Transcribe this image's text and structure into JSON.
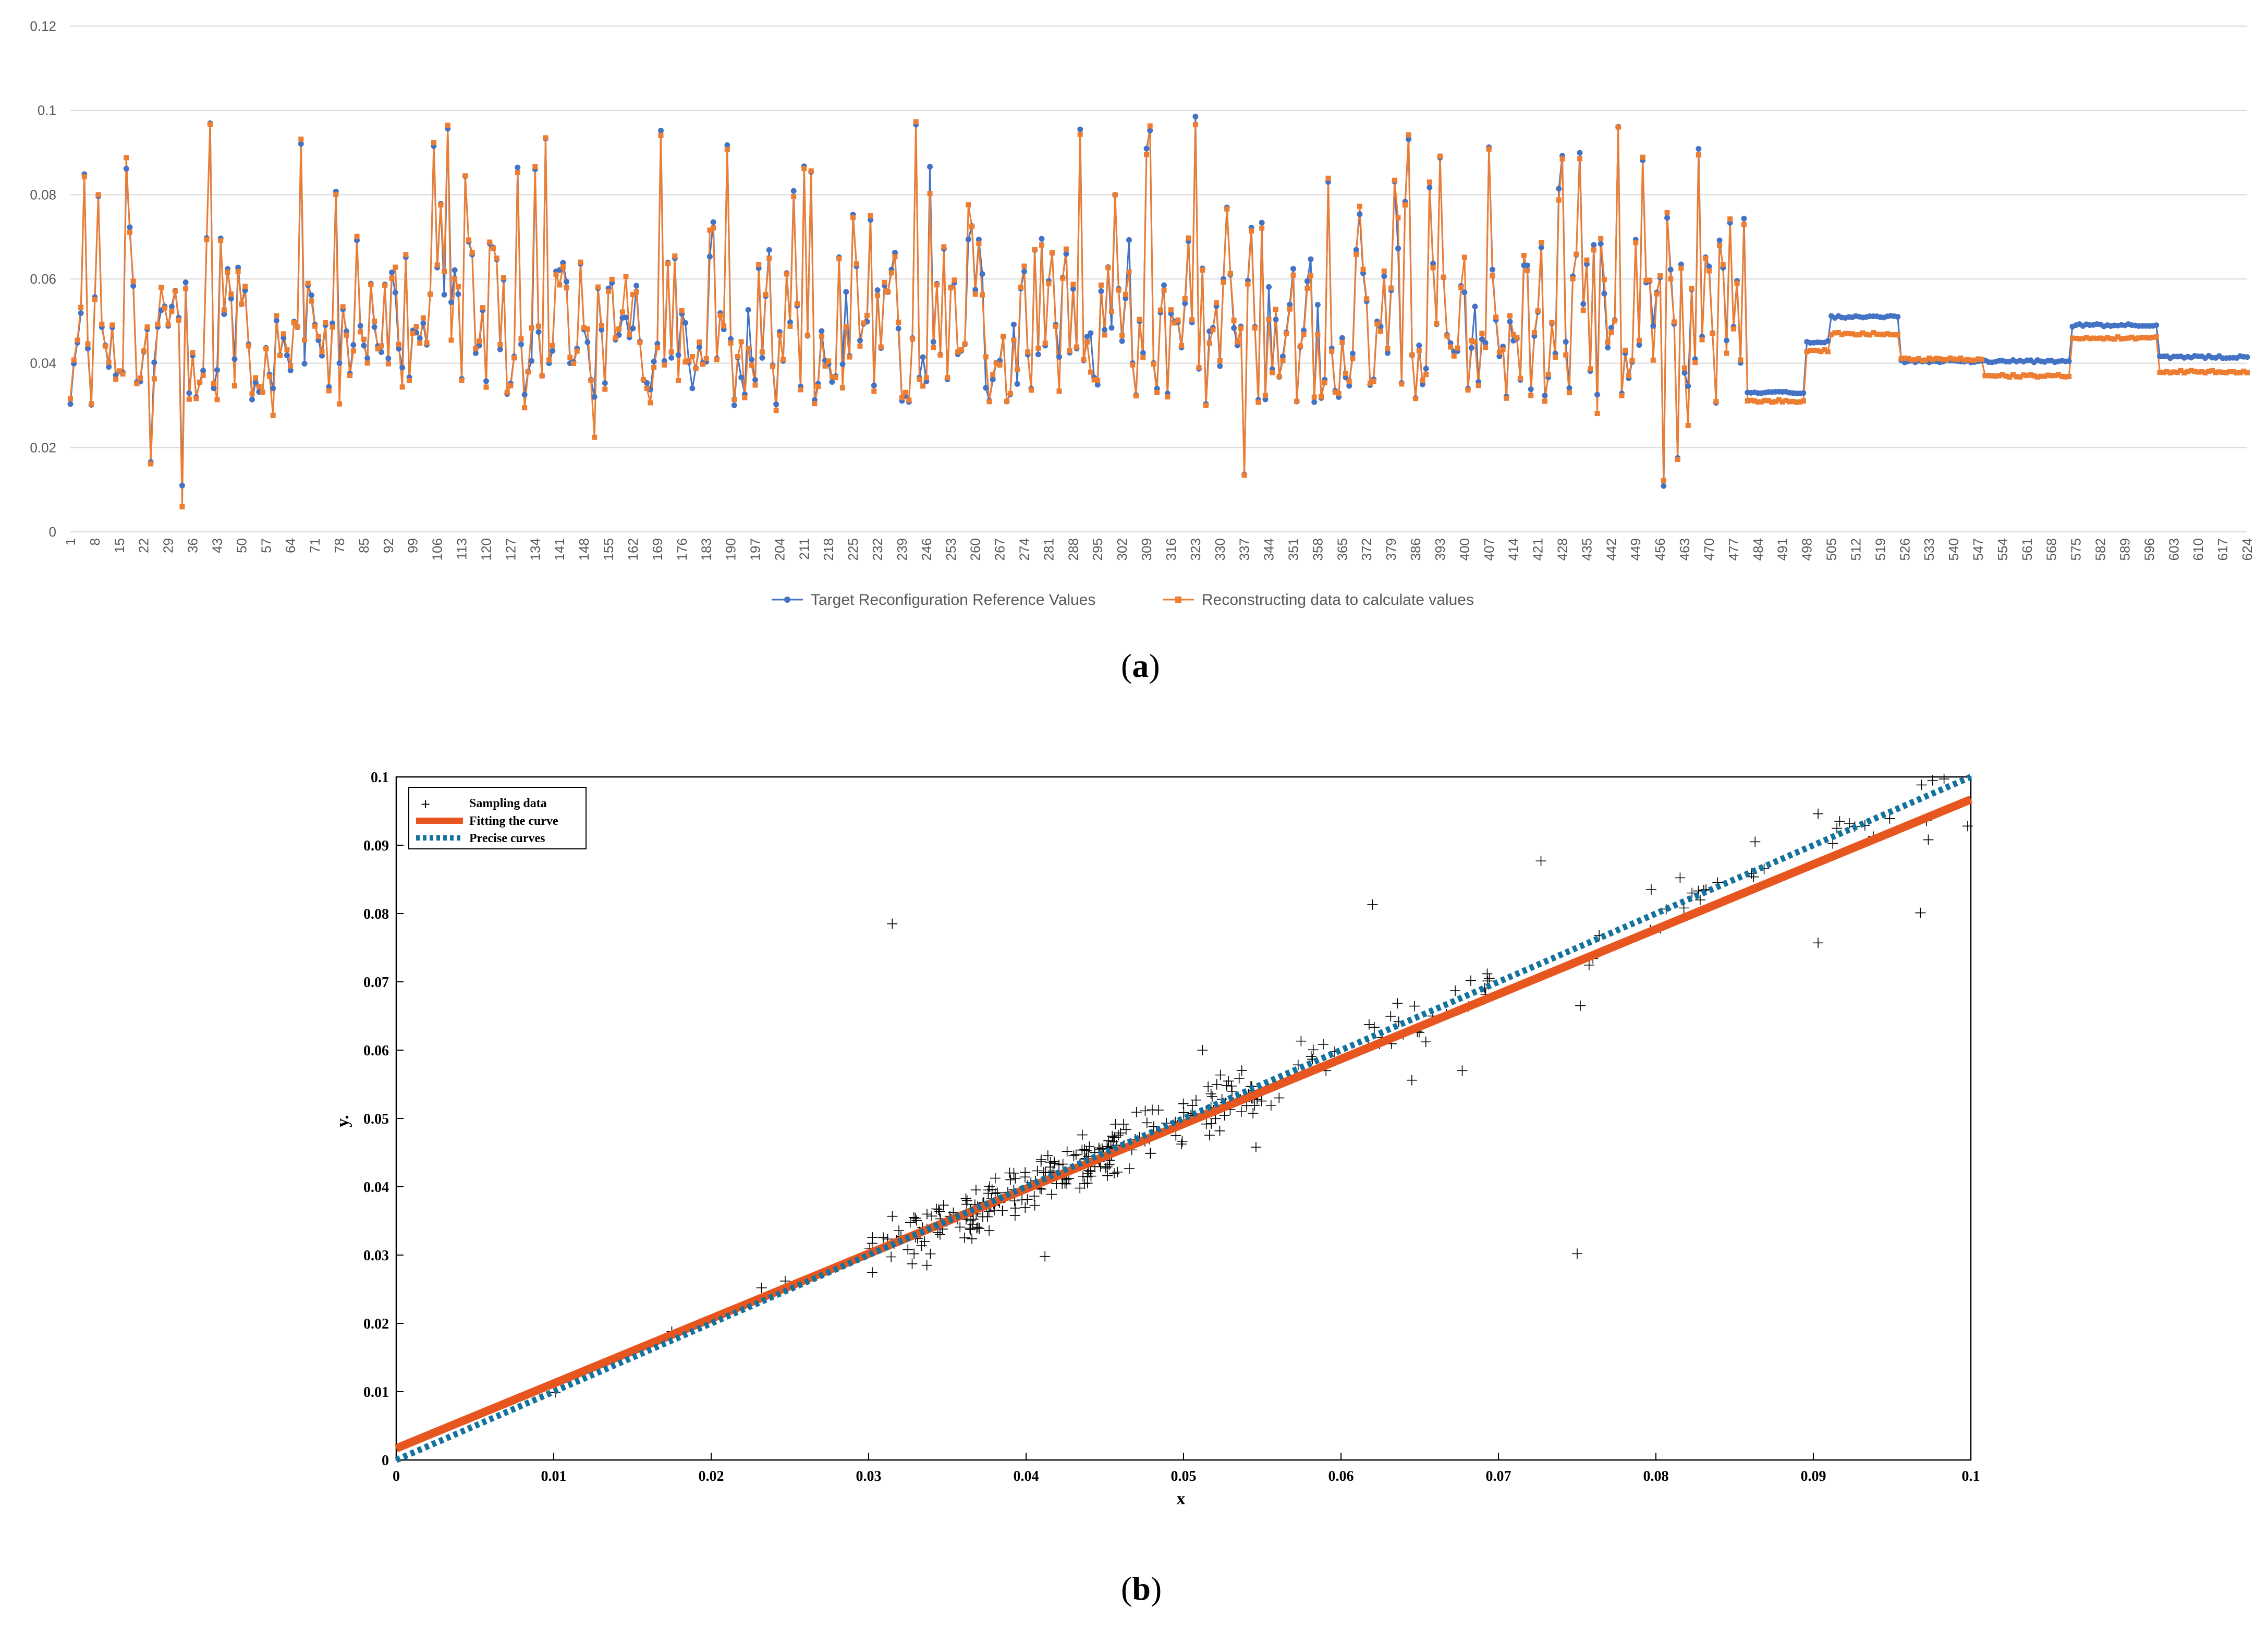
{
  "chart_data": [
    {
      "type": "line",
      "panel": "a",
      "caption_open": "(",
      "caption_letter": "a",
      "caption_close": ")",
      "title": "",
      "xlabel": "",
      "ylabel": "",
      "ylim": [
        0,
        0.12
      ],
      "y_ticks": [
        "0",
        "0.02",
        "0.04",
        "0.06",
        "0.08",
        "0.1",
        "0.12"
      ],
      "x_count": 624,
      "x_ticks_start": 1,
      "x_ticks_step": 7,
      "x_ticks_end": 624,
      "grid": true,
      "legend_position": "bottom-center",
      "series_colors": {
        "target": "#4472c4",
        "reconstructed": "#ed7d31"
      },
      "series": [
        {
          "name": "Target Reconfiguration Reference Values",
          "key": "target"
        },
        {
          "name": "Reconstructing data to calculate values",
          "key": "reconstructed"
        }
      ],
      "segments": [
        {
          "from": 1,
          "to": 480,
          "pattern": "random",
          "range": [
            0.01,
            0.1
          ]
        },
        {
          "from": 481,
          "to": 497,
          "target": 0.033,
          "reconstructed": 0.031
        },
        {
          "from": 498,
          "to": 504,
          "target": 0.045,
          "reconstructed": 0.043
        },
        {
          "from": 505,
          "to": 524,
          "target": 0.051,
          "reconstructed": 0.047
        },
        {
          "from": 525,
          "to": 548,
          "target": 0.0405,
          "reconstructed": 0.041
        },
        {
          "from": 549,
          "to": 573,
          "target": 0.0405,
          "reconstructed": 0.037
        },
        {
          "from": 574,
          "to": 598,
          "target": 0.049,
          "reconstructed": 0.046
        },
        {
          "from": 599,
          "to": 624,
          "target": 0.0415,
          "reconstructed": 0.038
        }
      ]
    },
    {
      "type": "scatter",
      "panel": "b",
      "caption_open": "(",
      "caption_letter": "b",
      "caption_close": ")",
      "title": "",
      "xlabel": "x",
      "ylabel": "y.",
      "xlim": [
        0,
        0.1
      ],
      "ylim": [
        0,
        0.1
      ],
      "x_ticks": [
        "0",
        "0.01",
        "0.02",
        "0.03",
        "0.04",
        "0.05",
        "0.06",
        "0.07",
        "0.08",
        "0.09",
        "0.1"
      ],
      "y_ticks": [
        "0",
        "0.01",
        "0.02",
        "0.03",
        "0.04",
        "0.05",
        "0.06",
        "0.07",
        "0.08",
        "0.09",
        "0.1"
      ],
      "grid": false,
      "legend_position": "top-left",
      "legend": {
        "sampling": "Sampling data",
        "fit": "Fitting the curve",
        "precise": "Precise curves"
      },
      "colors": {
        "fit": "#e8561f",
        "precise": "#14739e",
        "points": "#000000"
      },
      "fit_line": {
        "slope": 0.95,
        "intercept": 0.0017
      },
      "precise_line": {
        "slope": 1.0,
        "intercept": 0.0
      },
      "outliers": [
        [
          0.0315,
          0.0785
        ],
        [
          0.062,
          0.0813
        ],
        [
          0.0727,
          0.0877
        ],
        [
          0.075,
          0.0302
        ],
        [
          0.0797,
          0.0835
        ],
        [
          0.0863,
          0.0905
        ],
        [
          0.0903,
          0.0946
        ],
        [
          0.0968,
          0.0801
        ],
        [
          0.0903,
          0.0757
        ],
        [
          0.0973,
          0.0908
        ],
        [
          0.0983,
          0.0997
        ],
        [
          0.0998,
          0.0928
        ],
        [
          0.0752,
          0.0665
        ],
        [
          0.0546,
          0.0458
        ],
        [
          0.0645,
          0.0556
        ],
        [
          0.0677,
          0.057
        ],
        [
          0.0512,
          0.06
        ],
        [
          0.0337,
          0.0285
        ],
        [
          0.0412,
          0.0298
        ],
        [
          0.0101,
          0.0099
        ],
        [
          0.0175,
          0.0188
        ],
        [
          0.0232,
          0.0252
        ],
        [
          0.0247,
          0.0262
        ]
      ]
    }
  ]
}
